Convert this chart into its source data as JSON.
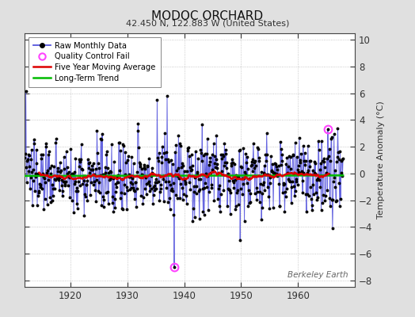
{
  "title": "MODOC ORCHARD",
  "subtitle": "42.450 N, 122.883 W (United States)",
  "ylabel": "Temperature Anomaly (°C)",
  "watermark": "Berkeley Earth",
  "xlim": [
    1912,
    1970
  ],
  "ylim": [
    -8.5,
    10.5
  ],
  "yticks": [
    -8,
    -6,
    -4,
    -2,
    0,
    2,
    4,
    6,
    8,
    10
  ],
  "xticks": [
    1920,
    1930,
    1940,
    1950,
    1960
  ],
  "bg_color": "#e0e0e0",
  "plot_bg_color": "#ffffff",
  "raw_line_color": "#5555dd",
  "raw_dot_color": "#000000",
  "ma_color": "#dd0000",
  "trend_color": "#00bb00",
  "qc_color": "#ff44ff",
  "seed": 137,
  "n_months": 672,
  "start_year": 1912.0,
  "noise_std": 1.4,
  "trend_slope": 0.004
}
